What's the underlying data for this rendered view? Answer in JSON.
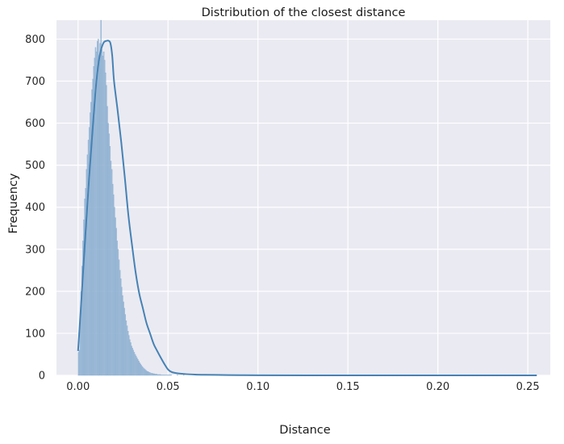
{
  "chart_data": {
    "type": "bar",
    "title": "Distribution of the closest distance",
    "xlabel": "Distance",
    "ylabel": "Frequency",
    "xlim": [
      -0.012,
      0.2625
    ],
    "ylim": [
      0,
      845
    ],
    "xticks": [
      0.0,
      0.05,
      0.1,
      0.15,
      0.2,
      0.25
    ],
    "xtick_labels": [
      "0.00",
      "0.05",
      "0.10",
      "0.15",
      "0.20",
      "0.25"
    ],
    "yticks": [
      0,
      100,
      200,
      300,
      400,
      500,
      600,
      700,
      800
    ],
    "ytick_labels": [
      "0",
      "100",
      "200",
      "300",
      "400",
      "500",
      "600",
      "700",
      "800"
    ],
    "grid": true,
    "background": "#eaeaf2",
    "bar_color": "#9ab8d6",
    "line_color": "#4682b4",
    "series": [
      {
        "kind": "histogram",
        "bin_width": 0.0005,
        "x_start": 0.0,
        "values": [
          55,
          60,
          130,
          200,
          260,
          320,
          370,
          420,
          445,
          490,
          525,
          560,
          590,
          625,
          650,
          680,
          705,
          735,
          755,
          780,
          770,
          795,
          800,
          745,
          790,
          845,
          775,
          760,
          770,
          750,
          720,
          690,
          640,
          600,
          575,
          545,
          510,
          490,
          455,
          430,
          400,
          375,
          350,
          320,
          300,
          275,
          250,
          230,
          210,
          190,
          175,
          160,
          145,
          130,
          118,
          105,
          95,
          85,
          78,
          70,
          65,
          60,
          55,
          50,
          46,
          42,
          38,
          34,
          30,
          27,
          24,
          21,
          18,
          16,
          14,
          12,
          10,
          9,
          8,
          7,
          6,
          5,
          5,
          4,
          4,
          3,
          3,
          3,
          2,
          2,
          2,
          2,
          1,
          1,
          1,
          1,
          1,
          1,
          1,
          1,
          1,
          1,
          1,
          1,
          0,
          0,
          0,
          0,
          0,
          0,
          1,
          0,
          0,
          0,
          0,
          0,
          0,
          1,
          0,
          0
        ]
      },
      {
        "kind": "kde",
        "x": [
          0.0,
          0.002,
          0.004,
          0.006,
          0.008,
          0.01,
          0.012,
          0.014,
          0.016,
          0.017,
          0.018,
          0.019,
          0.02,
          0.022,
          0.024,
          0.026,
          0.028,
          0.03,
          0.032,
          0.034,
          0.036,
          0.038,
          0.04,
          0.042,
          0.044,
          0.046,
          0.048,
          0.05,
          0.052,
          0.055,
          0.06,
          0.065,
          0.07,
          0.08,
          0.09,
          0.1,
          0.15,
          0.2,
          0.255
        ],
        "y": [
          58,
          190,
          330,
          460,
          580,
          690,
          760,
          790,
          796,
          796,
          790,
          760,
          700,
          630,
          555,
          470,
          380,
          310,
          245,
          195,
          160,
          125,
          100,
          75,
          58,
          42,
          27,
          14,
          8,
          5,
          3,
          2,
          1.5,
          1,
          0.5,
          0.3,
          0,
          0,
          0
        ]
      }
    ]
  }
}
